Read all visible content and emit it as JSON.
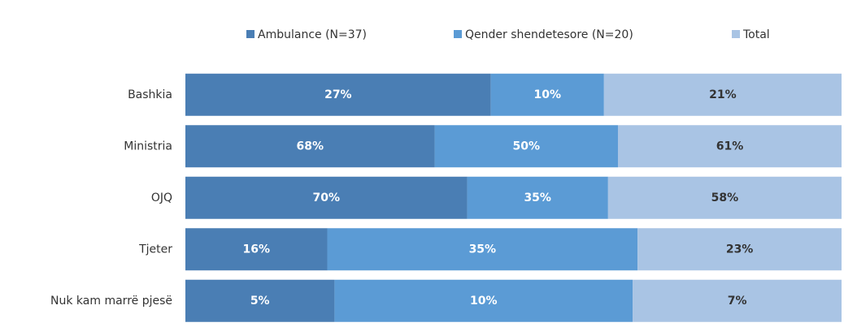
{
  "chart_data": {
    "type": "bar",
    "orientation": "horizontal",
    "stacking": "percent",
    "categories": [
      "Bashkia",
      "Ministria",
      "OJQ",
      "Tjeter",
      "Nuk kam marrë pjesë"
    ],
    "series": [
      {
        "name": "Ambulance (N=37)",
        "color": "#4a7eb4",
        "label_color": "#ffffff",
        "values": [
          27,
          68,
          70,
          16,
          5
        ],
        "value_labels": [
          "27%",
          "68%",
          "70%",
          "16%",
          "5%"
        ]
      },
      {
        "name": "Qender shendetesore (N=20)",
        "color": "#5b9bd5",
        "label_color": "#ffffff",
        "values": [
          10,
          50,
          35,
          35,
          10
        ],
        "value_labels": [
          "10%",
          "50%",
          "35%",
          "35%",
          "10%"
        ]
      },
      {
        "name": "Total",
        "color": "#a9c4e4",
        "label_color": "#333333",
        "values": [
          21,
          61,
          58,
          23,
          7
        ],
        "value_labels": [
          "21%",
          "61%",
          "58%",
          "23%",
          "7%"
        ]
      }
    ],
    "legend": "top"
  }
}
